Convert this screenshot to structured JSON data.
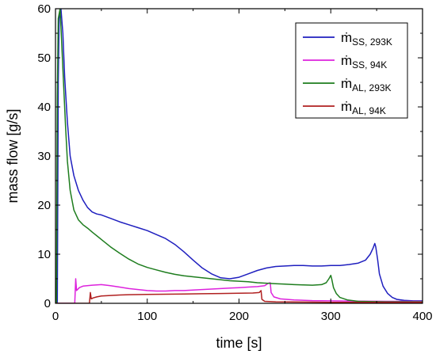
{
  "chart_data": {
    "type": "line",
    "xlabel": "time [s]",
    "ylabel": "mass flow [g/s]",
    "xlim": [
      0,
      400
    ],
    "ylim": [
      0,
      60
    ],
    "xticks": [
      0,
      100,
      200,
      300,
      400
    ],
    "yticks": [
      0,
      10,
      20,
      30,
      40,
      50,
      60
    ],
    "grid": false,
    "legend_position": "top-right",
    "series": [
      {
        "key": "ss293",
        "name": "ṁ",
        "subscript": "SS, 293K",
        "color": "#1f1fbf",
        "points": [
          [
            0,
            0
          ],
          [
            2,
            0
          ],
          [
            3,
            45
          ],
          [
            4,
            58
          ],
          [
            6,
            60
          ],
          [
            8,
            55
          ],
          [
            10,
            46
          ],
          [
            13,
            37
          ],
          [
            16,
            30
          ],
          [
            20,
            26
          ],
          [
            25,
            23
          ],
          [
            30,
            21
          ],
          [
            35,
            19.5
          ],
          [
            40,
            18.6
          ],
          [
            45,
            18.2
          ],
          [
            50,
            18.0
          ],
          [
            60,
            17.3
          ],
          [
            70,
            16.6
          ],
          [
            80,
            16.0
          ],
          [
            90,
            15.4
          ],
          [
            100,
            14.8
          ],
          [
            110,
            14.0
          ],
          [
            120,
            13.2
          ],
          [
            130,
            12.0
          ],
          [
            140,
            10.5
          ],
          [
            150,
            8.8
          ],
          [
            160,
            7.2
          ],
          [
            170,
            6.0
          ],
          [
            180,
            5.2
          ],
          [
            190,
            5.0
          ],
          [
            200,
            5.3
          ],
          [
            210,
            6.0
          ],
          [
            220,
            6.7
          ],
          [
            230,
            7.2
          ],
          [
            240,
            7.5
          ],
          [
            250,
            7.6
          ],
          [
            260,
            7.7
          ],
          [
            270,
            7.7
          ],
          [
            280,
            7.6
          ],
          [
            290,
            7.6
          ],
          [
            300,
            7.7
          ],
          [
            310,
            7.7
          ],
          [
            320,
            7.9
          ],
          [
            330,
            8.2
          ],
          [
            338,
            8.8
          ],
          [
            343,
            10.0
          ],
          [
            346,
            11.2
          ],
          [
            348,
            12.2
          ],
          [
            349,
            11.5
          ],
          [
            351,
            9.0
          ],
          [
            353,
            6.0
          ],
          [
            357,
            3.5
          ],
          [
            362,
            2.0
          ],
          [
            367,
            1.2
          ],
          [
            372,
            0.8
          ],
          [
            380,
            0.6
          ],
          [
            390,
            0.5
          ],
          [
            400,
            0.5
          ]
        ]
      },
      {
        "key": "ss94",
        "name": "ṁ",
        "subscript": "SS, 94K",
        "color": "#dd22dd",
        "points": [
          [
            0,
            0
          ],
          [
            21,
            0
          ],
          [
            22,
            5.0
          ],
          [
            23,
            2.6
          ],
          [
            26,
            3.2
          ],
          [
            30,
            3.5
          ],
          [
            40,
            3.7
          ],
          [
            50,
            3.8
          ],
          [
            60,
            3.6
          ],
          [
            70,
            3.3
          ],
          [
            80,
            3.0
          ],
          [
            90,
            2.8
          ],
          [
            100,
            2.6
          ],
          [
            110,
            2.5
          ],
          [
            120,
            2.5
          ],
          [
            130,
            2.6
          ],
          [
            140,
            2.6
          ],
          [
            150,
            2.7
          ],
          [
            160,
            2.8
          ],
          [
            170,
            2.9
          ],
          [
            180,
            3.0
          ],
          [
            190,
            3.1
          ],
          [
            200,
            3.2
          ],
          [
            210,
            3.3
          ],
          [
            220,
            3.4
          ],
          [
            228,
            3.6
          ],
          [
            232,
            4.1
          ],
          [
            234,
            4.2
          ],
          [
            235,
            2.2
          ],
          [
            238,
            1.3
          ],
          [
            245,
            0.9
          ],
          [
            260,
            0.7
          ],
          [
            280,
            0.55
          ],
          [
            300,
            0.5
          ],
          [
            330,
            0.45
          ],
          [
            360,
            0.4
          ],
          [
            400,
            0.4
          ]
        ]
      },
      {
        "key": "al293",
        "name": "ṁ",
        "subscript": "AL, 293K",
        "color": "#1e7d1e",
        "points": [
          [
            0,
            0
          ],
          [
            1,
            0
          ],
          [
            2,
            42
          ],
          [
            3,
            58
          ],
          [
            5,
            60
          ],
          [
            7,
            52
          ],
          [
            9,
            44
          ],
          [
            11,
            36
          ],
          [
            13,
            29
          ],
          [
            16,
            23
          ],
          [
            20,
            19
          ],
          [
            25,
            17
          ],
          [
            30,
            16
          ],
          [
            35,
            15.3
          ],
          [
            40,
            14.5
          ],
          [
            50,
            13.0
          ],
          [
            60,
            11.5
          ],
          [
            70,
            10.2
          ],
          [
            80,
            9.0
          ],
          [
            90,
            8.0
          ],
          [
            100,
            7.3
          ],
          [
            110,
            6.8
          ],
          [
            120,
            6.3
          ],
          [
            130,
            5.9
          ],
          [
            140,
            5.6
          ],
          [
            150,
            5.4
          ],
          [
            160,
            5.2
          ],
          [
            170,
            5.0
          ],
          [
            180,
            4.8
          ],
          [
            190,
            4.6
          ],
          [
            200,
            4.5
          ],
          [
            210,
            4.4
          ],
          [
            220,
            4.2
          ],
          [
            230,
            4.1
          ],
          [
            240,
            4.0
          ],
          [
            250,
            3.9
          ],
          [
            260,
            3.8
          ],
          [
            270,
            3.75
          ],
          [
            280,
            3.7
          ],
          [
            290,
            3.8
          ],
          [
            295,
            4.2
          ],
          [
            298,
            5.0
          ],
          [
            300,
            5.7
          ],
          [
            301,
            5.0
          ],
          [
            303,
            3.2
          ],
          [
            306,
            2.0
          ],
          [
            310,
            1.2
          ],
          [
            318,
            0.7
          ],
          [
            330,
            0.4
          ],
          [
            360,
            0.3
          ],
          [
            400,
            0.3
          ]
        ]
      },
      {
        "key": "al94",
        "name": "ṁ",
        "subscript": "AL, 94K",
        "color": "#b02020",
        "points": [
          [
            0,
            0
          ],
          [
            37,
            0
          ],
          [
            38,
            2.2
          ],
          [
            39,
            0.9
          ],
          [
            41,
            1.1
          ],
          [
            45,
            1.3
          ],
          [
            50,
            1.5
          ],
          [
            60,
            1.6
          ],
          [
            70,
            1.7
          ],
          [
            80,
            1.75
          ],
          [
            100,
            1.8
          ],
          [
            120,
            1.85
          ],
          [
            140,
            1.9
          ],
          [
            160,
            1.95
          ],
          [
            180,
            2.0
          ],
          [
            200,
            2.05
          ],
          [
            215,
            2.1
          ],
          [
            222,
            2.2
          ],
          [
            224,
            2.6
          ],
          [
            225,
            0.8
          ],
          [
            228,
            0.4
          ],
          [
            240,
            0.3
          ],
          [
            270,
            0.25
          ],
          [
            300,
            0.2
          ],
          [
            350,
            0.2
          ],
          [
            400,
            0.2
          ]
        ]
      }
    ]
  }
}
